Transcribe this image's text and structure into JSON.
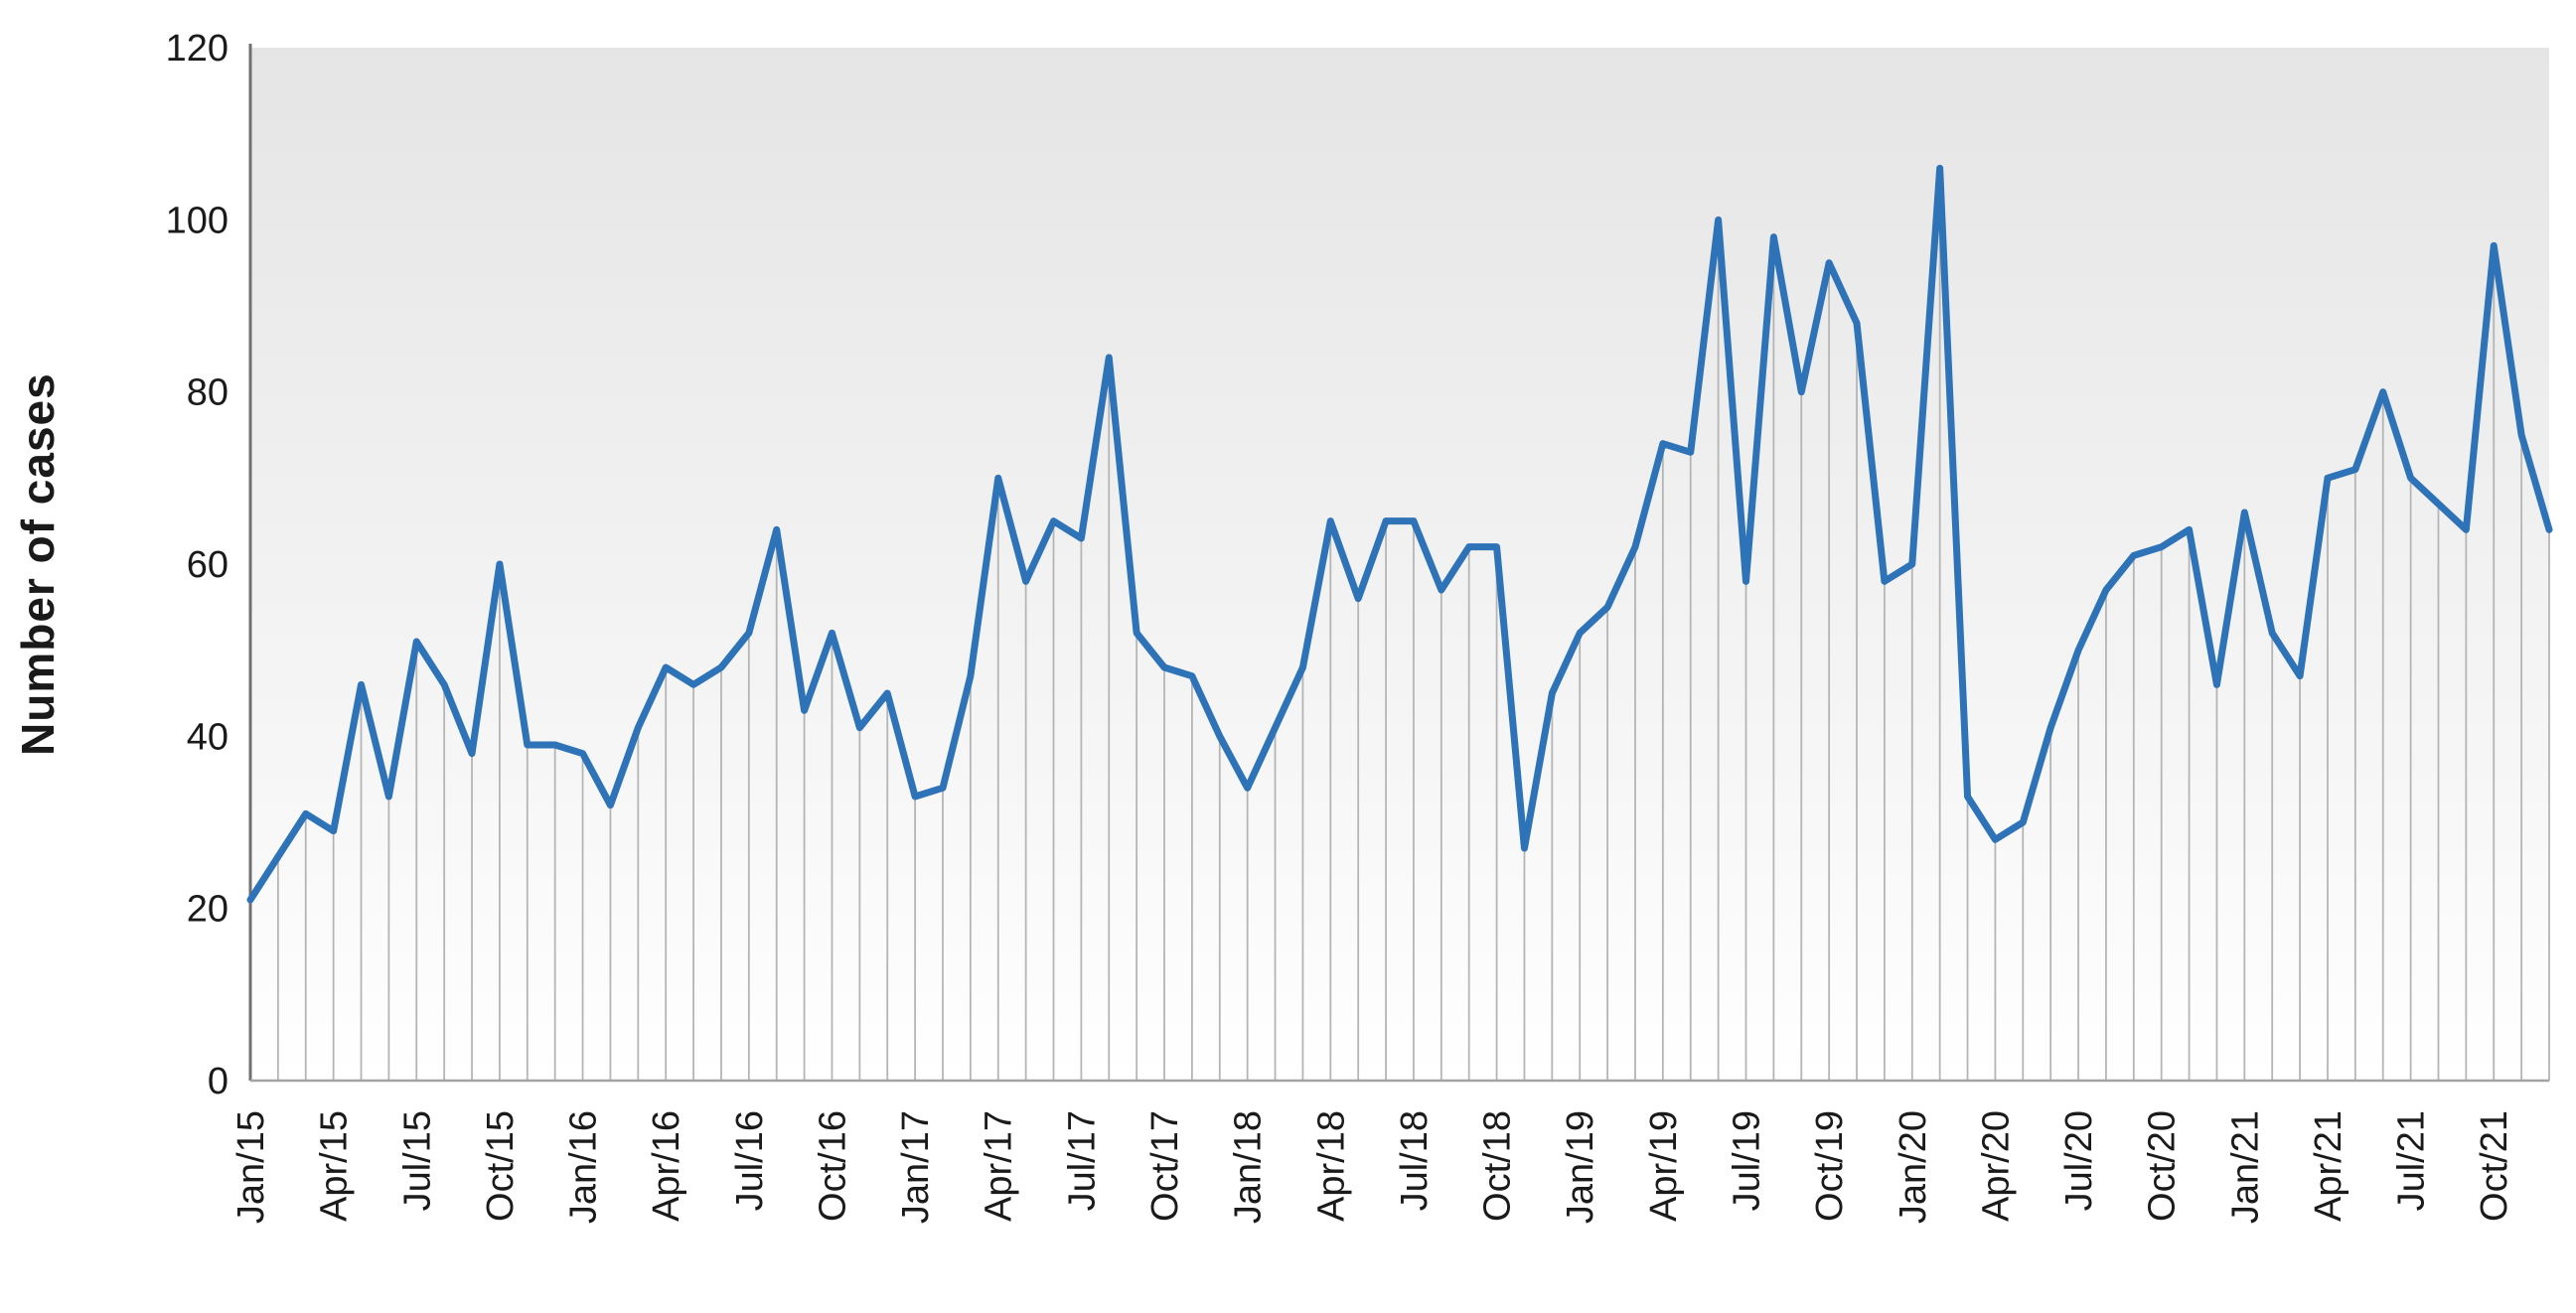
{
  "page": {
    "background": "#ffffff"
  },
  "chart_data": {
    "type": "line",
    "title": "",
    "xlabel": "",
    "ylabel": "Number of cases",
    "ylim": [
      0,
      120
    ],
    "yticks": [
      0,
      20,
      40,
      60,
      80,
      100,
      120
    ],
    "grid": "off",
    "legend": "none",
    "droplines": true,
    "xtick_every": 3,
    "xtick_labels": [
      "Jan/15",
      "Apr/15",
      "Jul/15",
      "Oct/15",
      "Jan/16",
      "Apr/16",
      "Jul/16",
      "Oct/16",
      "Jan/17",
      "Apr/17",
      "Jul/17",
      "Oct/17",
      "Jan/18",
      "Apr/18",
      "Jul/18",
      "Oct/18",
      "Jan/19",
      "Apr/19",
      "Jul/19",
      "Oct/19",
      "Jan/20",
      "Apr/20",
      "Jul/20",
      "Oct/20",
      "Jan/21",
      "Apr/21",
      "Jul/21",
      "Oct/21"
    ],
    "months": [
      "Jan/15",
      "Feb/15",
      "Mar/15",
      "Apr/15",
      "May/15",
      "Jun/15",
      "Jul/15",
      "Aug/15",
      "Sep/15",
      "Oct/15",
      "Nov/15",
      "Dec/15",
      "Jan/16",
      "Feb/16",
      "Mar/16",
      "Apr/16",
      "May/16",
      "Jun/16",
      "Jul/16",
      "Aug/16",
      "Sep/16",
      "Oct/16",
      "Nov/16",
      "Dec/16",
      "Jan/17",
      "Feb/17",
      "Mar/17",
      "Apr/17",
      "May/17",
      "Jun/17",
      "Jul/17",
      "Aug/17",
      "Sep/17",
      "Oct/17",
      "Nov/17",
      "Dec/17",
      "Jan/18",
      "Feb/18",
      "Mar/18",
      "Apr/18",
      "May/18",
      "Jun/18",
      "Jul/18",
      "Aug/18",
      "Sep/18",
      "Oct/18",
      "Nov/18",
      "Dec/18",
      "Jan/19",
      "Feb/19",
      "Mar/19",
      "Apr/19",
      "May/19",
      "Jun/19",
      "Jul/19",
      "Aug/19",
      "Sep/19",
      "Oct/19",
      "Nov/19",
      "Dec/19",
      "Jan/20",
      "Feb/20",
      "Mar/20",
      "Apr/20",
      "May/20",
      "Jun/20",
      "Jul/20",
      "Aug/20",
      "Sep/20",
      "Oct/20",
      "Nov/20",
      "Dec/20",
      "Jan/21",
      "Feb/21",
      "Mar/21",
      "Apr/21",
      "May/21",
      "Jun/21",
      "Jul/21",
      "Aug/21",
      "Sep/21",
      "Oct/21",
      "Nov/21",
      "Dec/21"
    ],
    "series": [
      {
        "name": "Number of cases",
        "values": [
          21,
          26,
          31,
          29,
          46,
          33,
          51,
          46,
          38,
          60,
          39,
          39,
          38,
          32,
          41,
          48,
          46,
          48,
          52,
          64,
          43,
          52,
          41,
          45,
          33,
          34,
          47,
          70,
          58,
          65,
          63,
          84,
          52,
          48,
          47,
          40,
          34,
          41,
          48,
          65,
          56,
          65,
          65,
          57,
          62,
          62,
          27,
          45,
          52,
          55,
          62,
          74,
          73,
          100,
          58,
          98,
          80,
          95,
          88,
          58,
          60,
          106,
          33,
          28,
          30,
          41,
          50,
          57,
          61,
          62,
          64,
          46,
          66,
          52,
          47,
          70,
          71,
          80,
          70,
          67,
          64,
          97,
          75,
          64
        ]
      }
    ],
    "colors": {
      "line": "#2e73b8",
      "dropline": "#b5b5b5",
      "y_axis": "#707070",
      "x_axis": "#a3a3a3",
      "text": "#1a1a1a",
      "plot_gradient_top": "#e5e5e5",
      "plot_gradient_mid": "#f7f7f7",
      "plot_gradient_bottom": "#ffffff"
    }
  }
}
